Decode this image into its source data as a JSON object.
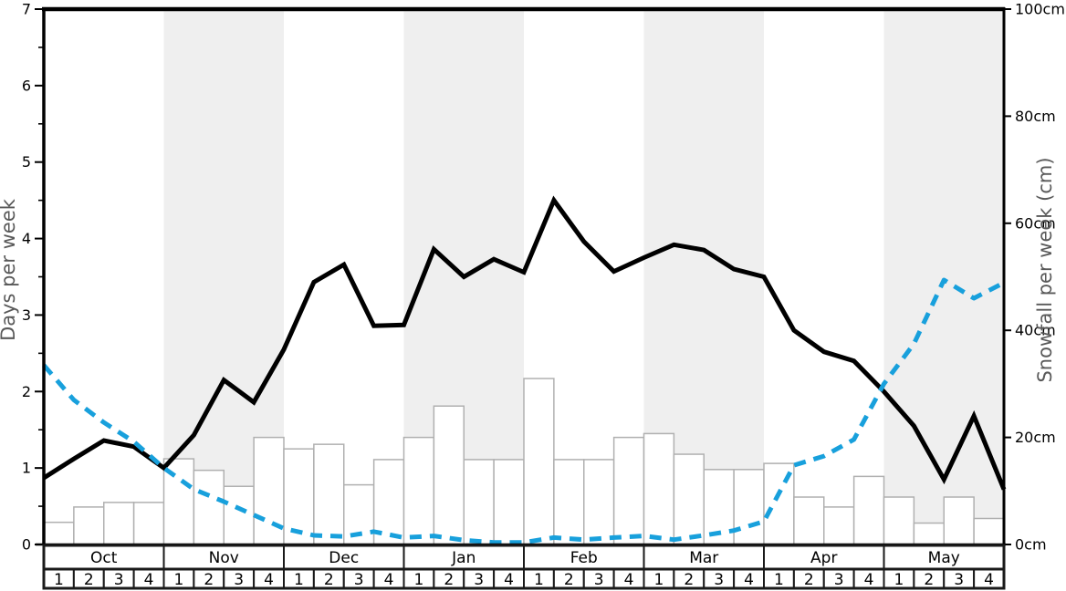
{
  "chart_data": {
    "type": "line+bar",
    "title": "",
    "months": [
      "Oct",
      "Nov",
      "Dec",
      "Jan",
      "Feb",
      "Mar",
      "Apr",
      "May"
    ],
    "week_labels": [
      "1",
      "2",
      "3",
      "4"
    ],
    "shaded_months": [
      "Nov",
      "Jan",
      "Mar",
      "May"
    ],
    "left_axis": {
      "label": "Days per week",
      "range": [
        0,
        7
      ],
      "tick_values": [
        0,
        1,
        2,
        3,
        4,
        5,
        6,
        7
      ],
      "tick_labels": [
        "0",
        "1",
        "2",
        "3",
        "4",
        "5",
        "6",
        "7"
      ],
      "minor_tick_step": 0.5
    },
    "right_axis": {
      "label": "Snowfall per week (cm)",
      "range": [
        0,
        100
      ],
      "tick_values": [
        0,
        20,
        40,
        60,
        80,
        100
      ],
      "tick_labels": [
        "0cm",
        "20cm",
        "40cm",
        "60cm",
        "80cm",
        "100cm"
      ]
    },
    "series": [
      {
        "name": "snowy-days-per-week",
        "type": "line",
        "axis": "left",
        "color": "#000000",
        "line_style": "solid",
        "x_unit": "week-boundaries (33 points, Oct wk1 start to May wk4 end)",
        "values": [
          0.87,
          1.12,
          1.36,
          1.28,
          1.0,
          1.43,
          2.15,
          1.86,
          2.55,
          3.43,
          3.66,
          2.86,
          2.87,
          3.86,
          3.5,
          3.73,
          3.56,
          4.5,
          3.96,
          3.57,
          3.75,
          3.92,
          3.85,
          3.6,
          3.5,
          2.8,
          2.52,
          2.4,
          2.0,
          1.55,
          0.85,
          1.68,
          0.72
        ]
      },
      {
        "name": "snowfall-per-week-cm",
        "type": "line",
        "axis": "right",
        "color": "#18a0dc",
        "line_style": "dashed",
        "x_unit": "week-boundaries (33 points, Oct wk1 start to May wk4 end)",
        "values": [
          33.5,
          27.0,
          22.8,
          19.2,
          14.3,
          10.3,
          8.0,
          5.5,
          3.0,
          1.7,
          1.5,
          2.4,
          1.3,
          1.6,
          0.8,
          0.4,
          0.4,
          1.3,
          0.9,
          1.3,
          1.6,
          0.9,
          1.7,
          2.6,
          4.3,
          14.8,
          16.5,
          19.6,
          30.0,
          37.5,
          49.4,
          46.0,
          48.9
        ]
      },
      {
        "name": "weekly-bars-days",
        "type": "bar",
        "axis": "left",
        "fill": "#ffffff",
        "border_color": "#b0b0b0",
        "x_unit": "one bar per week (32 bars)",
        "values": [
          0.29,
          0.49,
          0.55,
          0.55,
          1.12,
          0.97,
          0.76,
          1.4,
          1.25,
          1.31,
          0.78,
          1.11,
          1.4,
          1.81,
          1.11,
          1.11,
          2.17,
          1.11,
          1.11,
          1.4,
          1.45,
          1.18,
          0.98,
          0.98,
          1.06,
          0.62,
          0.49,
          0.89,
          0.62,
          0.28,
          0.62,
          0.34
        ]
      }
    ],
    "colors": {
      "month_band": "#efefef",
      "axis_line": "#000000",
      "table_border": "#1a1a1a",
      "axis_title_text": "#595959",
      "snowfall_line": "#18a0dc"
    },
    "layout_hints": {
      "grid": "off",
      "legend": "none",
      "shading": "alternate month bands"
    }
  }
}
